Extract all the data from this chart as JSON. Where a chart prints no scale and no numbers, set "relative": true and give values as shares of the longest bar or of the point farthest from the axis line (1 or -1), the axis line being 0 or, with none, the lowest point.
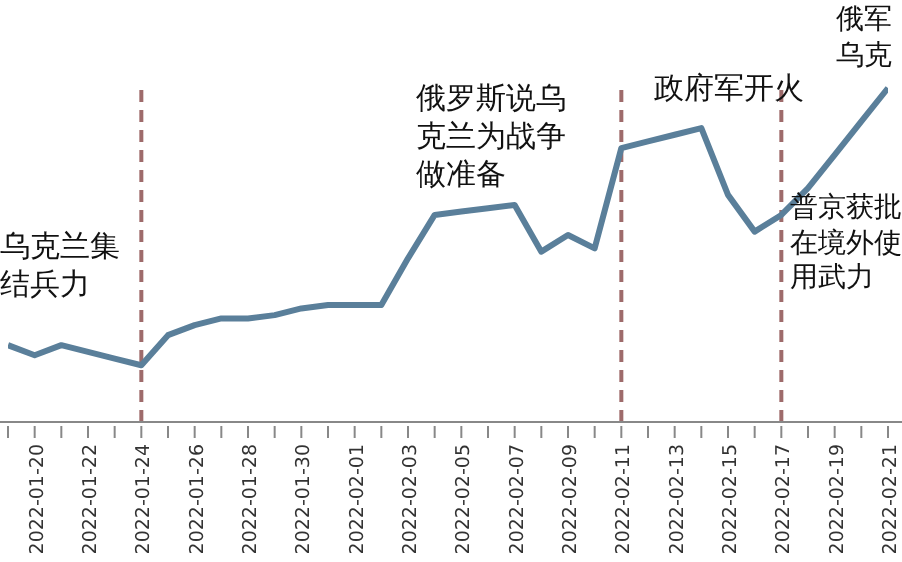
{
  "chart_data": {
    "type": "line",
    "relative": true,
    "marker": "none",
    "line_style": "solid",
    "categories": [
      null,
      "2022-01-20",
      null,
      "2022-01-22",
      null,
      "2022-01-24",
      null,
      "2022-01-26",
      null,
      "2022-01-28",
      null,
      "2022-01-30",
      null,
      "2022-02-01",
      null,
      "2022-02-03",
      null,
      "2022-02-05",
      null,
      "2022-02-07",
      null,
      "2022-02-09",
      null,
      "2022-02-11",
      null,
      "2022-02-13",
      null,
      "2022-02-15",
      null,
      "2022-02-17",
      null,
      "2022-02-19",
      null,
      "2022-02-21"
    ],
    "series": [
      {
        "color": "#5a7f9a",
        "values": [
          0.23,
          0.2,
          0.23,
          0.21,
          0.19,
          0.17,
          0.26,
          0.29,
          0.31,
          0.31,
          0.32,
          0.34,
          0.35,
          0.35,
          0.35,
          0.49,
          0.62,
          0.63,
          0.64,
          0.65,
          0.51,
          0.56,
          0.52,
          0.82,
          0.84,
          0.86,
          0.88,
          0.68,
          0.57,
          0.62,
          0.7,
          0.8,
          0.9,
          1
        ]
      }
    ],
    "ref_lines": [
      {
        "axis": "x",
        "value": "2022-01-24",
        "color": "#9e6b6b",
        "line_style": "dashed"
      },
      {
        "axis": "x",
        "value": "2022-02-11",
        "color": "#9e6b6b",
        "line_style": "dashed"
      },
      {
        "axis": "x",
        "value": "2022-02-17",
        "color": "#9e6b6b",
        "line_style": "dashed"
      }
    ],
    "annotations": [
      "乌克兰集结兵力",
      "俄罗斯说乌克兰为战争做准备",
      "政府军开火",
      "普京获批在境外使用武力",
      "俄军乌克"
    ]
  }
}
